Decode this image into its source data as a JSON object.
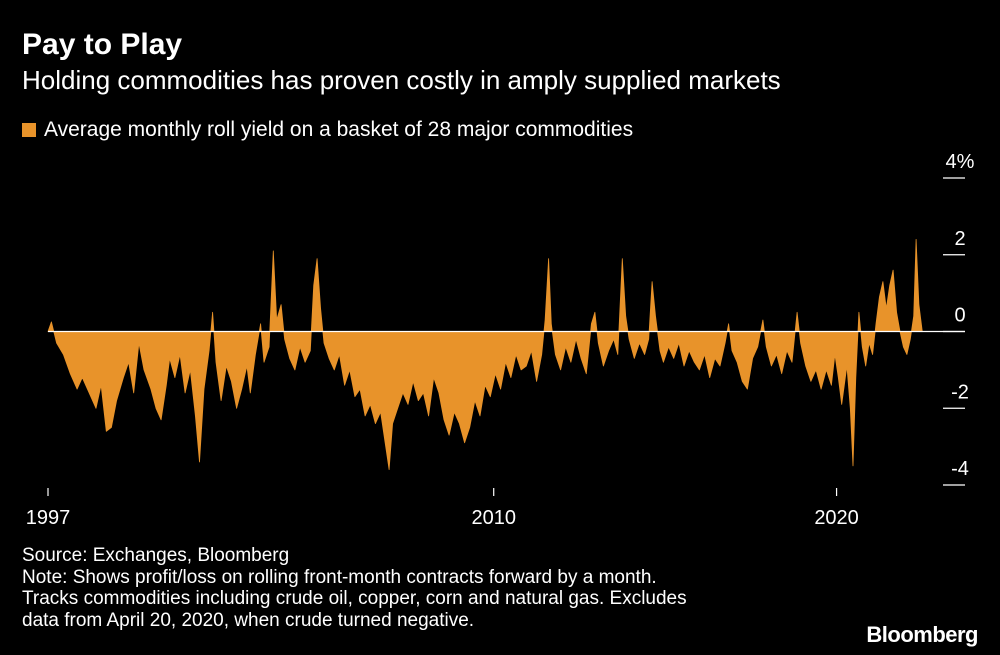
{
  "header": {
    "title": "Pay to Play",
    "subtitle": "Holding commodities has proven costly in amply supplied markets"
  },
  "legend": {
    "label": "Average monthly roll yield on a basket of 28 major commodities"
  },
  "colors": {
    "series": "#E8932A",
    "background": "#000000",
    "text": "#FFFFFF",
    "axis": "#FFFFFF"
  },
  "chart_data": {
    "type": "area",
    "title": "Pay to Play",
    "subtitle": "Holding commodities has proven costly in amply supplied markets",
    "xlabel": "",
    "ylabel": "",
    "xlim": [
      1997.0,
      2023.6
    ],
    "ylim": [
      -4,
      4
    ],
    "yticks": [
      4,
      2,
      0,
      -2,
      -4
    ],
    "ytick_labels": [
      "4%",
      "2",
      "0",
      "-2",
      "-4"
    ],
    "xticks": [
      1997,
      2010,
      2020
    ],
    "xtick_labels": [
      "1997",
      "2010",
      "2020"
    ],
    "series": [
      {
        "name": "Average monthly roll yield on a basket of 28 major commodities",
        "points": [
          [
            1997.0,
            0.0
          ],
          [
            1997.1,
            0.25
          ],
          [
            1997.25,
            -0.3
          ],
          [
            1997.45,
            -0.6
          ],
          [
            1997.65,
            -1.1
          ],
          [
            1997.85,
            -1.5
          ],
          [
            1998.0,
            -1.2
          ],
          [
            1998.2,
            -1.6
          ],
          [
            1998.4,
            -2.0
          ],
          [
            1998.55,
            -1.4
          ],
          [
            1998.7,
            -2.6
          ],
          [
            1998.85,
            -2.5
          ],
          [
            1999.0,
            -1.8
          ],
          [
            1999.2,
            -1.2
          ],
          [
            1999.35,
            -0.8
          ],
          [
            1999.5,
            -1.6
          ],
          [
            1999.65,
            -0.3
          ],
          [
            1999.8,
            -1.0
          ],
          [
            2000.0,
            -1.5
          ],
          [
            2000.15,
            -2.0
          ],
          [
            2000.3,
            -2.3
          ],
          [
            2000.45,
            -1.4
          ],
          [
            2000.55,
            -0.7
          ],
          [
            2000.7,
            -1.2
          ],
          [
            2000.85,
            -0.6
          ],
          [
            2001.0,
            -1.6
          ],
          [
            2001.15,
            -1.0
          ],
          [
            2001.3,
            -2.2
          ],
          [
            2001.42,
            -3.4
          ],
          [
            2001.55,
            -1.5
          ],
          [
            2001.7,
            -0.5
          ],
          [
            2001.8,
            0.5
          ],
          [
            2001.9,
            -0.8
          ],
          [
            2002.05,
            -1.8
          ],
          [
            2002.2,
            -0.9
          ],
          [
            2002.35,
            -1.3
          ],
          [
            2002.5,
            -2.0
          ],
          [
            2002.65,
            -1.5
          ],
          [
            2002.8,
            -0.9
          ],
          [
            2002.9,
            -1.6
          ],
          [
            2003.05,
            -0.6
          ],
          [
            2003.2,
            0.2
          ],
          [
            2003.3,
            -0.8
          ],
          [
            2003.45,
            -0.4
          ],
          [
            2003.57,
            2.1
          ],
          [
            2003.67,
            0.3
          ],
          [
            2003.8,
            0.7
          ],
          [
            2003.9,
            -0.2
          ],
          [
            2004.05,
            -0.7
          ],
          [
            2004.2,
            -1.0
          ],
          [
            2004.35,
            -0.4
          ],
          [
            2004.5,
            -0.8
          ],
          [
            2004.65,
            -0.5
          ],
          [
            2004.75,
            1.2
          ],
          [
            2004.85,
            1.9
          ],
          [
            2004.95,
            0.6
          ],
          [
            2005.05,
            -0.3
          ],
          [
            2005.2,
            -0.7
          ],
          [
            2005.35,
            -1.0
          ],
          [
            2005.5,
            -0.6
          ],
          [
            2005.65,
            -1.4
          ],
          [
            2005.8,
            -1.0
          ],
          [
            2005.95,
            -1.7
          ],
          [
            2006.1,
            -1.5
          ],
          [
            2006.25,
            -2.2
          ],
          [
            2006.4,
            -1.9
          ],
          [
            2006.55,
            -2.4
          ],
          [
            2006.7,
            -2.1
          ],
          [
            2006.85,
            -3.0
          ],
          [
            2006.95,
            -3.6
          ],
          [
            2007.05,
            -2.4
          ],
          [
            2007.2,
            -2.0
          ],
          [
            2007.35,
            -1.6
          ],
          [
            2007.5,
            -1.9
          ],
          [
            2007.65,
            -1.3
          ],
          [
            2007.8,
            -1.8
          ],
          [
            2007.95,
            -1.6
          ],
          [
            2008.1,
            -2.2
          ],
          [
            2008.25,
            -1.2
          ],
          [
            2008.4,
            -1.6
          ],
          [
            2008.55,
            -2.3
          ],
          [
            2008.7,
            -2.7
          ],
          [
            2008.85,
            -2.1
          ],
          [
            2009.0,
            -2.4
          ],
          [
            2009.15,
            -2.9
          ],
          [
            2009.3,
            -2.5
          ],
          [
            2009.45,
            -1.8
          ],
          [
            2009.6,
            -2.2
          ],
          [
            2009.75,
            -1.4
          ],
          [
            2009.9,
            -1.7
          ],
          [
            2010.05,
            -1.1
          ],
          [
            2010.2,
            -1.5
          ],
          [
            2010.35,
            -0.8
          ],
          [
            2010.5,
            -1.2
          ],
          [
            2010.65,
            -0.6
          ],
          [
            2010.8,
            -1.0
          ],
          [
            2010.95,
            -0.9
          ],
          [
            2011.1,
            -0.5
          ],
          [
            2011.25,
            -1.3
          ],
          [
            2011.4,
            -0.6
          ],
          [
            2011.5,
            0.3
          ],
          [
            2011.6,
            1.9
          ],
          [
            2011.68,
            0.2
          ],
          [
            2011.8,
            -0.6
          ],
          [
            2011.95,
            -1.0
          ],
          [
            2012.1,
            -0.4
          ],
          [
            2012.25,
            -0.8
          ],
          [
            2012.4,
            -0.2
          ],
          [
            2012.55,
            -0.7
          ],
          [
            2012.7,
            -1.1
          ],
          [
            2012.85,
            0.2
          ],
          [
            2012.95,
            0.5
          ],
          [
            2013.05,
            -0.3
          ],
          [
            2013.2,
            -0.9
          ],
          [
            2013.35,
            -0.5
          ],
          [
            2013.5,
            -0.2
          ],
          [
            2013.62,
            -0.6
          ],
          [
            2013.75,
            1.9
          ],
          [
            2013.85,
            0.4
          ],
          [
            2013.95,
            -0.2
          ],
          [
            2014.1,
            -0.7
          ],
          [
            2014.25,
            -0.3
          ],
          [
            2014.4,
            -0.6
          ],
          [
            2014.52,
            -0.2
          ],
          [
            2014.62,
            1.3
          ],
          [
            2014.72,
            0.4
          ],
          [
            2014.85,
            -0.5
          ],
          [
            2014.95,
            -0.8
          ],
          [
            2015.1,
            -0.4
          ],
          [
            2015.25,
            -0.7
          ],
          [
            2015.4,
            -0.3
          ],
          [
            2015.55,
            -0.9
          ],
          [
            2015.7,
            -0.5
          ],
          [
            2015.85,
            -0.8
          ],
          [
            2016.0,
            -1.0
          ],
          [
            2016.15,
            -0.6
          ],
          [
            2016.3,
            -1.2
          ],
          [
            2016.45,
            -0.7
          ],
          [
            2016.6,
            -0.9
          ],
          [
            2016.75,
            -0.3
          ],
          [
            2016.85,
            0.2
          ],
          [
            2016.95,
            -0.5
          ],
          [
            2017.1,
            -0.8
          ],
          [
            2017.25,
            -1.3
          ],
          [
            2017.4,
            -1.5
          ],
          [
            2017.55,
            -0.7
          ],
          [
            2017.7,
            -0.4
          ],
          [
            2017.85,
            0.3
          ],
          [
            2017.95,
            -0.4
          ],
          [
            2018.1,
            -0.9
          ],
          [
            2018.25,
            -0.6
          ],
          [
            2018.4,
            -1.1
          ],
          [
            2018.55,
            -0.5
          ],
          [
            2018.7,
            -0.8
          ],
          [
            2018.85,
            0.5
          ],
          [
            2018.95,
            -0.3
          ],
          [
            2019.1,
            -0.9
          ],
          [
            2019.25,
            -1.3
          ],
          [
            2019.4,
            -1.0
          ],
          [
            2019.55,
            -1.5
          ],
          [
            2019.7,
            -1.0
          ],
          [
            2019.85,
            -1.4
          ],
          [
            2019.95,
            -0.6
          ],
          [
            2020.05,
            -1.2
          ],
          [
            2020.15,
            -1.9
          ],
          [
            2020.3,
            -0.9
          ],
          [
            2020.4,
            -2.0
          ],
          [
            2020.48,
            -3.5
          ],
          [
            2020.56,
            -1.2
          ],
          [
            2020.65,
            0.5
          ],
          [
            2020.75,
            -0.4
          ],
          [
            2020.85,
            -0.9
          ],
          [
            2020.95,
            -0.3
          ],
          [
            2021.05,
            -0.6
          ],
          [
            2021.15,
            0.2
          ],
          [
            2021.25,
            0.9
          ],
          [
            2021.35,
            1.3
          ],
          [
            2021.45,
            0.6
          ],
          [
            2021.55,
            1.2
          ],
          [
            2021.65,
            1.6
          ],
          [
            2021.75,
            0.5
          ],
          [
            2021.85,
            0.0
          ],
          [
            2021.95,
            -0.4
          ],
          [
            2022.05,
            -0.6
          ],
          [
            2022.15,
            -0.2
          ],
          [
            2022.25,
            0.4
          ],
          [
            2022.32,
            2.4
          ],
          [
            2022.4,
            0.7
          ],
          [
            2022.5,
            0.0
          ]
        ]
      }
    ]
  },
  "footer": {
    "source": "Source: Exchanges, Bloomberg",
    "note_lines": [
      "Note: Shows profit/loss on rolling front-month contracts forward by a month.",
      "Tracks commodities including crude oil, copper, corn and natural gas. Excludes",
      "data from April 20, 2020, when crude turned negative."
    ],
    "brand": "Bloomberg"
  }
}
